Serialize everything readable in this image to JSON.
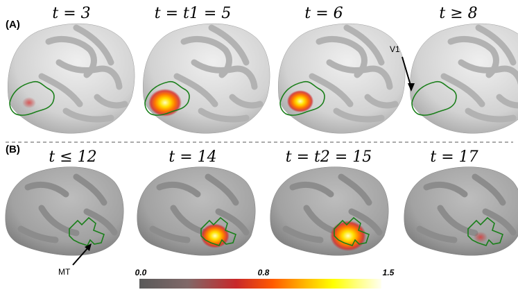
{
  "panel_a": {
    "label": "(A)",
    "titles": [
      "t = 3",
      "t = t1 = 5",
      "t = 6",
      "t ≥ 8"
    ],
    "annotation": "V1",
    "activation": [
      0.35,
      1.0,
      0.8,
      0.02
    ]
  },
  "panel_b": {
    "label": "(B)",
    "titles": [
      "t ≤ 12",
      "t = 14",
      "t = t2 = 15",
      "t = 17"
    ],
    "annotation": "MT",
    "activation": [
      0.02,
      0.8,
      1.0,
      0.3
    ]
  },
  "colorbar": {
    "ticks": [
      "0.0",
      "0.8",
      "1.5"
    ],
    "stops": [
      "#5a5a5a",
      "#7a6a6a",
      "#c8282a",
      "#ff5a00",
      "#ffb400",
      "#ffff00",
      "#ffff80",
      "#fffff0"
    ]
  },
  "colors": {
    "outline": "#1a7f1a",
    "separator": "#aaaaaa",
    "brain_base": "#d4d4d4",
    "brain_dark": "#a8a8a8"
  }
}
